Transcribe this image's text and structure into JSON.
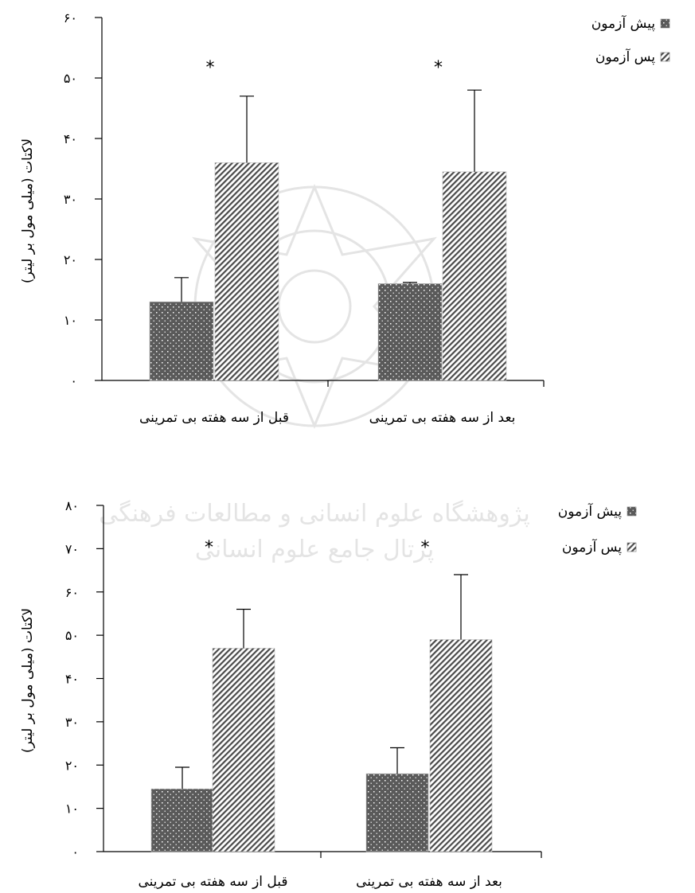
{
  "colors": {
    "pre_fill": "#5a5a5a",
    "post_fill": "#8c8c8c",
    "axis": "#000000",
    "watermark": "#b3b3b3"
  },
  "chart_data": [
    {
      "type": "bar",
      "categories": [
        "بعد از سه هفته بی تمرینی",
        "قبل از سه هفته بی تمرینی"
      ],
      "series": [
        {
          "name": "پیش آزمون",
          "values": [
            16,
            13
          ],
          "error": [
            0.2,
            4
          ]
        },
        {
          "name": "پس آزمون",
          "values": [
            34.5,
            36
          ],
          "error": [
            13.5,
            11
          ]
        }
      ],
      "annotations": [
        "*",
        "*"
      ],
      "ylabel": "لاکتات (میلی مول بر لیتر)",
      "ylim": [
        0,
        60
      ],
      "yticks": [
        "۰",
        "۱۰",
        "۲۰",
        "۳۰",
        "۴۰",
        "۵۰",
        "۶۰"
      ],
      "legend_position": "top-right",
      "grid": false
    },
    {
      "type": "bar",
      "categories": [
        "بعد از سه هفته بی تمرینی",
        "قبل از سه هفته بی تمرینی"
      ],
      "series": [
        {
          "name": "پیش آزمون",
          "values": [
            18,
            14.5
          ],
          "error": [
            6,
            5
          ]
        },
        {
          "name": "پس آزمون",
          "values": [
            49,
            47
          ],
          "error": [
            15,
            9
          ]
        }
      ],
      "annotations": [
        "*",
        "*"
      ],
      "ylabel": "لاکتات (میلی مول بر لیتر)",
      "ylim": [
        0,
        80
      ],
      "yticks": [
        "۰",
        "۱۰",
        "۲۰",
        "۳۰",
        "۴۰",
        "۵۰",
        "۶۰",
        "۷۰",
        "۸۰"
      ],
      "legend_position": "top-right",
      "grid": false
    }
  ],
  "watermark": {
    "line1": "پژوهشگاه علوم انسانی و مطالعات فرهنگی",
    "line2": "پرتال جامع علوم انسانی"
  }
}
